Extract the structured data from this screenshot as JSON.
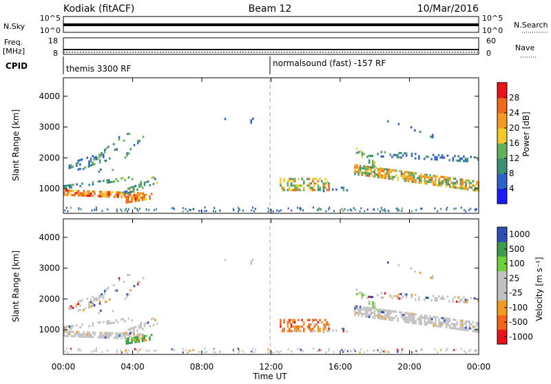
{
  "header": {
    "left_title": "Kodiak (fitACF)",
    "center_title": "Beam 12",
    "right_title": "10/Mar/2016"
  },
  "status_panels": {
    "nsky": {
      "label": "N.Sky",
      "left_ticks": [
        "10^5",
        "10^0"
      ],
      "right_label": "N.Search",
      "right_ticks": [
        "10^5",
        "10^0"
      ]
    },
    "freq": {
      "label_line1": "Freq.",
      "label_line2": "[MHz]",
      "left_ticks": [
        "18",
        "8"
      ],
      "right_label": "Nave",
      "right_ticks": [
        "60",
        "0"
      ]
    },
    "cpid": {
      "label": "CPID",
      "segments": [
        {
          "label": "themis 3300 RF",
          "start_hour": 0
        },
        {
          "label": "normalsound (fast) -157 RF",
          "start_hour": 12
        }
      ]
    }
  },
  "chart_data": [
    {
      "type": "heatmap",
      "ylabel": "Slant Range [km]",
      "y_ticks": [
        "1000",
        "2000",
        "3000",
        "4000"
      ],
      "ylim": [
        200,
        4600
      ],
      "xlim": [
        0,
        24
      ],
      "colorbar": {
        "label": "Power [dB]",
        "ticks": [
          "4",
          "8",
          "12",
          "16",
          "20",
          "24",
          "28"
        ],
        "range": [
          0,
          32
        ]
      }
    },
    {
      "type": "heatmap",
      "ylabel": "Slant Range [km]",
      "y_ticks": [
        "1000",
        "2000",
        "3000",
        "4000"
      ],
      "ylim": [
        200,
        4600
      ],
      "xlim": [
        0,
        24
      ],
      "colorbar": {
        "label": "Velocity [m s⁻¹]",
        "ticks": [
          "1000",
          "500",
          "100",
          "25",
          "-25",
          "-100",
          "-500",
          "-1000"
        ],
        "range": [
          -1000,
          1000
        ]
      }
    }
  ],
  "x_axis": {
    "label": "Time UT",
    "ticks": [
      "00:00",
      "04:00",
      "08:00",
      "12:00",
      "16:00",
      "20:00",
      "00:00"
    ],
    "tick_hours": [
      0,
      4,
      8,
      12,
      16,
      20,
      24
    ]
  }
}
